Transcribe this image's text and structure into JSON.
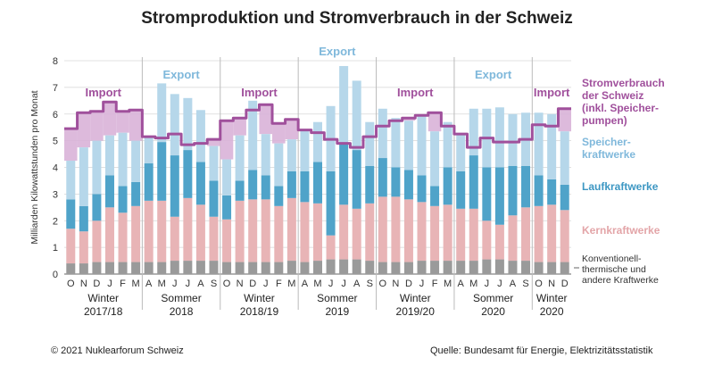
{
  "title": "Stromproduktion und Stromverbrauch in der Schweiz",
  "footer": {
    "copyright": "© 2021 Nuklearforum Schweiz",
    "source": "Quelle: Bundesamt für Energie, Elektrizitätsstatistik"
  },
  "chart_data": {
    "type": "bar",
    "stacked": true,
    "ylabel": "Milliarden Kilowattstunden pro Monat",
    "ylim": [
      0,
      8
    ],
    "yticks": [
      0,
      1,
      2,
      3,
      4,
      5,
      6,
      7,
      8
    ],
    "grid": true,
    "categories": [
      "O",
      "N",
      "D",
      "J",
      "F",
      "M",
      "A",
      "M",
      "J",
      "J",
      "A",
      "S",
      "O",
      "N",
      "D",
      "J",
      "F",
      "M",
      "A",
      "M",
      "J",
      "J",
      "A",
      "S",
      "O",
      "N",
      "D",
      "J",
      "F",
      "M",
      "A",
      "M",
      "J",
      "J",
      "A",
      "S",
      "O",
      "N",
      "D"
    ],
    "season_groups": [
      {
        "label": "Winter",
        "sublabel": "2017/18",
        "months": 6
      },
      {
        "label": "Sommer",
        "sublabel": "2018",
        "months": 6
      },
      {
        "label": "Winter",
        "sublabel": "2018/19",
        "months": 6
      },
      {
        "label": "Sommer",
        "sublabel": "2019",
        "months": 6
      },
      {
        "label": "Winter",
        "sublabel": "2019/20",
        "months": 6
      },
      {
        "label": "Sommer",
        "sublabel": "2020",
        "months": 6
      },
      {
        "label": "Winter",
        "sublabel": "2020",
        "months": 3
      }
    ],
    "series": [
      {
        "name": "Konventionell-thermische und andere Kraftwerke",
        "color": "#9a9a9a",
        "values": [
          0.4,
          0.4,
          0.45,
          0.45,
          0.45,
          0.45,
          0.45,
          0.45,
          0.5,
          0.5,
          0.5,
          0.5,
          0.45,
          0.45,
          0.45,
          0.45,
          0.45,
          0.5,
          0.45,
          0.5,
          0.55,
          0.55,
          0.55,
          0.5,
          0.45,
          0.45,
          0.45,
          0.5,
          0.5,
          0.5,
          0.5,
          0.5,
          0.55,
          0.55,
          0.5,
          0.5,
          0.45,
          0.45,
          0.45
        ]
      },
      {
        "name": "Kernkraftwerke",
        "color": "#e8b4b6",
        "values": [
          1.3,
          1.2,
          1.55,
          2.05,
          1.85,
          2.1,
          2.3,
          2.3,
          1.65,
          2.35,
          2.1,
          1.65,
          1.6,
          2.3,
          2.35,
          2.35,
          2.1,
          2.35,
          2.25,
          2.15,
          0.9,
          2.05,
          1.9,
          2.15,
          2.45,
          2.45,
          2.35,
          2.2,
          2.05,
          2.1,
          1.95,
          1.95,
          1.45,
          1.3,
          1.7,
          2.0,
          2.1,
          2.15,
          1.95
        ]
      },
      {
        "name": "Laufkraftwerke",
        "color": "#4fa3c9",
        "values": [
          1.1,
          0.95,
          1.0,
          1.2,
          1.0,
          0.9,
          1.4,
          2.2,
          2.3,
          1.8,
          1.6,
          1.35,
          0.9,
          0.75,
          1.1,
          0.9,
          0.75,
          1.0,
          1.15,
          1.55,
          2.4,
          2.3,
          2.2,
          1.4,
          1.45,
          1.1,
          1.1,
          1.0,
          0.75,
          1.4,
          1.4,
          2.0,
          2.0,
          2.15,
          1.85,
          1.55,
          1.15,
          0.95,
          0.95
        ]
      },
      {
        "name": "Speicherkraftwerke",
        "color": "#b6d7ea",
        "values": [
          1.45,
          2.2,
          2.0,
          1.5,
          2.0,
          1.55,
          1.0,
          2.2,
          2.3,
          1.95,
          1.95,
          1.3,
          1.35,
          1.7,
          2.6,
          1.55,
          1.6,
          1.2,
          1.55,
          1.5,
          2.45,
          2.9,
          2.6,
          1.65,
          1.85,
          1.85,
          1.85,
          2.25,
          2.05,
          1.7,
          1.4,
          1.75,
          2.2,
          2.25,
          1.95,
          2.0,
          2.35,
          2.45,
          2.0
        ]
      },
      {
        "name": "Stromverbrauch der Schweiz (inkl. Speicherpumpen)",
        "color": "#a0509c",
        "kind": "line",
        "values": [
          5.45,
          6.05,
          6.1,
          6.45,
          6.1,
          6.15,
          5.15,
          5.1,
          5.25,
          4.85,
          4.9,
          5.05,
          5.75,
          5.85,
          6.15,
          6.35,
          5.65,
          5.8,
          5.4,
          5.3,
          5.05,
          4.9,
          4.75,
          5.15,
          5.55,
          5.75,
          5.85,
          5.95,
          6.05,
          5.55,
          5.25,
          4.75,
          5.1,
          4.95,
          4.95,
          5.05,
          5.6,
          5.55,
          6.2
        ]
      }
    ],
    "labels": {
      "import": "Import",
      "export": "Export",
      "series_labels": [
        "Stromverbrauch",
        "der Schweiz",
        "(inkl. Speicher-",
        "pumpen)",
        "Speicher-",
        "kraftwerke",
        "Laufkraftwerke",
        "Kernkraftwerke",
        "Konventionell-",
        "thermische und",
        "andere Kraftwerke"
      ]
    }
  }
}
